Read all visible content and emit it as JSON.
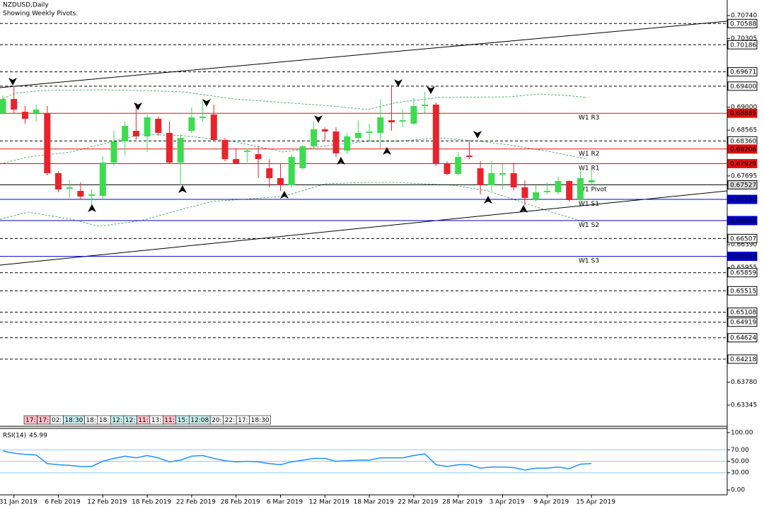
{
  "chart_data": [
    {
      "type": "candlestick",
      "title": "NZDUSD,Daily",
      "subtitle": "Showing Weekly Pivots.",
      "categories": [
        null,
        "31 Jan 2019",
        null,
        null,
        null,
        "6 Feb 2019",
        null,
        null,
        null,
        "12 Feb 2019",
        null,
        null,
        null,
        "18 Feb 2019",
        null,
        null,
        null,
        "22 Feb 2019",
        null,
        null,
        null,
        "28 Feb 2019",
        null,
        null,
        null,
        "6 Mar 2019",
        null,
        null,
        null,
        "12 Mar 2019",
        null,
        null,
        null,
        "18 Mar 2019",
        null,
        null,
        null,
        "22 Mar 2019",
        null,
        null,
        null,
        "28 Mar 2019",
        null,
        null,
        null,
        "3 Apr 2019",
        null,
        null,
        null,
        "9 Apr 2019",
        null,
        null,
        null,
        "15 Apr 2019"
      ],
      "open": [
        0.68888,
        0.69156,
        0.68914,
        0.68888,
        0.68888,
        0.67747,
        0.67452,
        0.67411,
        0.67317,
        0.67317,
        0.67948,
        0.68351,
        0.68552,
        0.68445,
        0.6878,
        0.68512,
        0.67948,
        0.68552,
        0.68794,
        0.68861,
        0.68378,
        0.68015,
        0.6815,
        0.68109,
        0.67841,
        0.67653,
        0.67519,
        0.67841,
        0.68257,
        0.68579,
        0.68539,
        0.68176,
        0.68418,
        0.68512,
        0.68512,
        0.68753,
        0.68727,
        0.68686,
        0.69022,
        0.69049,
        0.67921,
        0.67733,
        0.68082,
        0.67841,
        0.67519,
        0.6772,
        0.67747,
        0.67478,
        0.6725,
        0.67385,
        0.67385,
        0.67599,
        0.6725,
        0.67572
      ],
      "high": [
        0.69223,
        0.69398,
        0.69022,
        0.69049,
        0.69022,
        0.67787,
        0.67613,
        0.67572,
        0.67438,
        0.68056,
        0.68552,
        0.68727,
        0.69089,
        0.68861,
        0.68821,
        0.68727,
        0.68485,
        0.68995,
        0.69156,
        0.69049,
        0.68418,
        0.68217,
        0.68217,
        0.68243,
        0.68015,
        0.67921,
        0.68109,
        0.68284,
        0.68727,
        0.68619,
        0.68619,
        0.68512,
        0.68753,
        0.68686,
        0.69156,
        0.69425,
        0.68955,
        0.69183,
        0.6929,
        0.69089,
        0.67975,
        0.6815,
        0.68378,
        0.67975,
        0.67975,
        0.67921,
        0.67948,
        0.67613,
        0.67519,
        0.67572,
        0.6768,
        0.67613,
        0.67814,
        0.67814
      ],
      "low": [
        0.68861,
        0.68888,
        0.68686,
        0.68727,
        0.67707,
        0.67385,
        0.67277,
        0.6725,
        0.67143,
        0.6725,
        0.67881,
        0.68082,
        0.68378,
        0.6815,
        0.68458,
        0.67921,
        0.67519,
        0.68512,
        0.68727,
        0.68351,
        0.67975,
        0.67921,
        0.67948,
        0.67653,
        0.67478,
        0.67411,
        0.67478,
        0.67814,
        0.68217,
        0.68351,
        0.68056,
        0.68109,
        0.68378,
        0.68351,
        0.68217,
        0.68552,
        0.68619,
        0.68673,
        0.68888,
        0.67881,
        0.67707,
        0.67707,
        0.68015,
        0.67344,
        0.67411,
        0.67438,
        0.67411,
        0.67143,
        0.6721,
        0.67344,
        0.67344,
        0.6721,
        0.6721,
        0.67546
      ],
      "close": [
        0.69156,
        0.68955,
        0.6878,
        0.68955,
        0.67747,
        0.67438,
        0.67478,
        0.67304,
        0.67344,
        0.67948,
        0.68351,
        0.68646,
        0.68445,
        0.68807,
        0.68512,
        0.67948,
        0.68418,
        0.68807,
        0.68821,
        0.68378,
        0.68015,
        0.67921,
        0.68176,
        0.68015,
        0.67653,
        0.67519,
        0.68056,
        0.68257,
        0.68579,
        0.68539,
        0.68123,
        0.68445,
        0.68512,
        0.68539,
        0.68807,
        0.68713,
        0.68753,
        0.69022,
        0.69049,
        0.67921,
        0.67733,
        0.68056,
        0.68056,
        0.67519,
        0.67747,
        0.67747,
        0.67478,
        0.67277,
        0.67385,
        0.67411,
        0.67599,
        0.67237,
        0.67653,
        0.67613
      ],
      "up_color": "#3ddc4f",
      "down_color": "#e8232b",
      "ylim": [
        0.62983,
        0.71035
      ],
      "yticks": [
        {
          "value": 0.7074,
          "label": "0.70740"
        },
        {
          "value": 0.70305,
          "label": "0.70305"
        },
        {
          "value": 0.69,
          "label": "0.69000"
        },
        {
          "value": 0.68565,
          "label": "0.68565"
        },
        {
          "value": 0.67695,
          "label": "0.67695"
        },
        {
          "value": 0.6639,
          "label": "0.66390"
        },
        {
          "value": 0.65955,
          "label": "0.65955"
        },
        {
          "value": 0.6378,
          "label": "0.63780"
        },
        {
          "value": 0.63345,
          "label": "0.63345"
        }
      ],
      "levels": [
        {
          "value": 0.70588,
          "label": "0.70588"
        },
        {
          "value": 0.70186,
          "label": "0.70186"
        },
        {
          "value": 0.69671,
          "label": "0.69671"
        },
        {
          "value": 0.694,
          "label": "0.69400"
        },
        {
          "value": 0.6836,
          "label": "0.68360"
        },
        {
          "value": 0.66507,
          "label": "0.66507"
        },
        {
          "value": 0.65859,
          "label": "0.65859"
        },
        {
          "value": 0.65515,
          "label": "0.65515"
        },
        {
          "value": 0.65108,
          "label": "0.65108"
        },
        {
          "value": 0.64919,
          "label": "0.64919"
        },
        {
          "value": 0.64624,
          "label": "0.64624"
        },
        {
          "value": 0.64218,
          "label": "0.64218"
        }
      ],
      "pivots": [
        {
          "name": "W1 R3",
          "value": 0.68885,
          "label": "0.68885",
          "color": "#e01010"
        },
        {
          "name": "W1 R2",
          "value": 0.68206,
          "label": "0.68206",
          "color": "#e01010"
        },
        {
          "name": "W1 R1",
          "value": 0.67929,
          "label": "0.67929",
          "color": "#e01010"
        },
        {
          "name": "W1 Pivot",
          "value": 0.67527,
          "label": "0.67527",
          "color": "#000000"
        },
        {
          "name": "W1 S1",
          "value": 0.6725,
          "label": "0.67250",
          "color": "#0000cc"
        },
        {
          "name": "W1 S2",
          "value": 0.66848,
          "label": "0.66848",
          "color": "#0000cc"
        },
        {
          "name": "W1 S3",
          "value": 0.66169,
          "label": "0.66169",
          "color": "#0000cc"
        }
      ],
      "time_labels": [
        {
          "text": "17:",
          "color": "#ffc0cb"
        },
        {
          "text": "17:",
          "color": "#ffc0cb"
        },
        {
          "text": "02:",
          "color": "#ffffff"
        },
        {
          "text": "18:30",
          "color": "#c8f0f0"
        },
        {
          "text": "18:",
          "color": "#ffffff"
        },
        {
          "text": "18:",
          "color": "#ffffff"
        },
        {
          "text": "12:",
          "color": "#c8f0f0"
        },
        {
          "text": "12:",
          "color": "#c8f0f0"
        },
        {
          "text": "11:",
          "color": "#ffc0cb"
        },
        {
          "text": "13:",
          "color": "#ffffff"
        },
        {
          "text": "11:",
          "color": "#ffc0cb"
        },
        {
          "text": "15:",
          "color": "#c8f0f0"
        },
        {
          "text": "12:08",
          "color": "#c8f0f0"
        },
        {
          "text": "20:",
          "color": "#ffffff"
        },
        {
          "text": "22:",
          "color": "#ffffff"
        },
        {
          "text": "17:",
          "color": "#ffffff"
        },
        {
          "text": "18:30",
          "color": "#ffffff"
        }
      ]
    },
    {
      "type": "line",
      "series": [
        {
          "name": "RSI(14)",
          "color": "#1e90ff",
          "values": [
            68,
            64,
            62,
            61,
            46,
            44,
            43,
            41,
            41,
            50,
            55,
            59,
            56,
            60,
            56,
            49,
            52,
            59,
            60,
            55,
            51,
            49,
            50,
            49,
            46,
            44,
            49,
            52,
            55,
            55,
            50,
            51,
            52,
            52,
            56,
            56,
            56,
            60,
            63,
            44,
            41,
            44,
            44,
            38,
            40,
            40,
            39,
            35,
            38,
            38,
            40,
            37,
            45,
            45.99
          ]
        }
      ],
      "last_value": 45.99,
      "ylim": [
        -8.5,
        107.3
      ],
      "yticks": [
        {
          "value": 100,
          "label": "100.00"
        },
        {
          "value": 70,
          "label": "70.00"
        },
        {
          "value": 50,
          "label": "50.00"
        },
        {
          "value": 30,
          "label": "30.00"
        },
        {
          "value": 0,
          "label": "0.00"
        }
      ],
      "level_color": "#87cefa"
    }
  ]
}
